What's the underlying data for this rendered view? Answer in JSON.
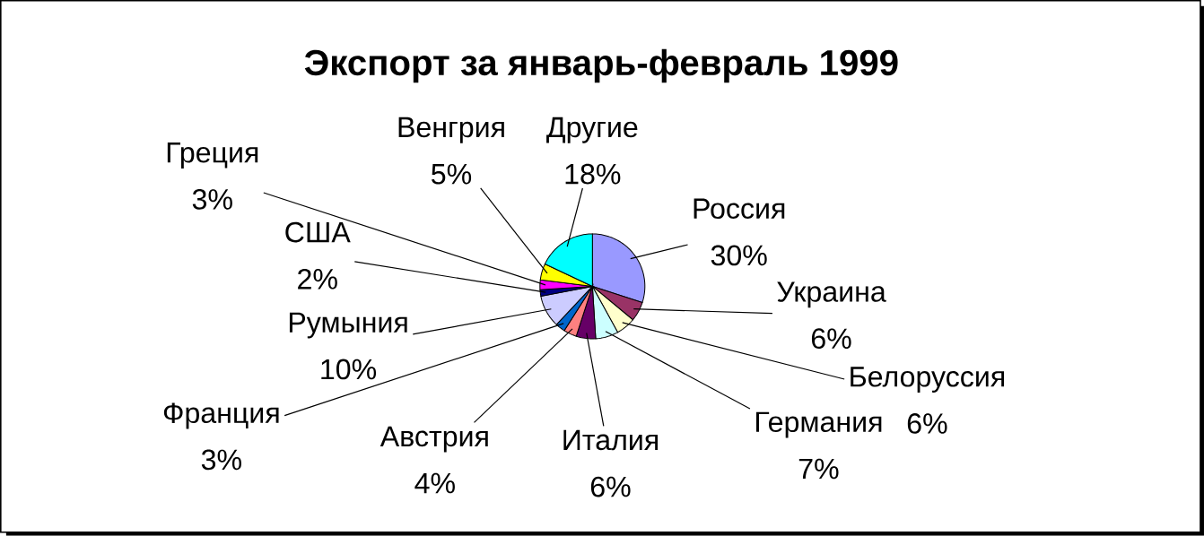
{
  "chart_data": {
    "type": "pie",
    "title": "Экспорт за январь-февраль 1999",
    "categories": [
      "Россия",
      "Украина",
      "Белоруссия",
      "Германия",
      "Италия",
      "Австрия",
      "Франция",
      "Румыния",
      "США",
      "Греция",
      "Венгрия",
      "Другие"
    ],
    "values": [
      30,
      6,
      6,
      7,
      6,
      4,
      3,
      10,
      2,
      3,
      5,
      18
    ],
    "value_labels": [
      "30%",
      "6%",
      "6%",
      "7%",
      "6%",
      "4%",
      "3%",
      "10%",
      "2%",
      "3%",
      "5%",
      "18%"
    ],
    "colors": [
      "#9999ff",
      "#993366",
      "#ffffcc",
      "#ccffff",
      "#660066",
      "#ff8080",
      "#0066cc",
      "#ccccff",
      "#000080",
      "#ff00ff",
      "#ffff00",
      "#00ffff"
    ]
  }
}
